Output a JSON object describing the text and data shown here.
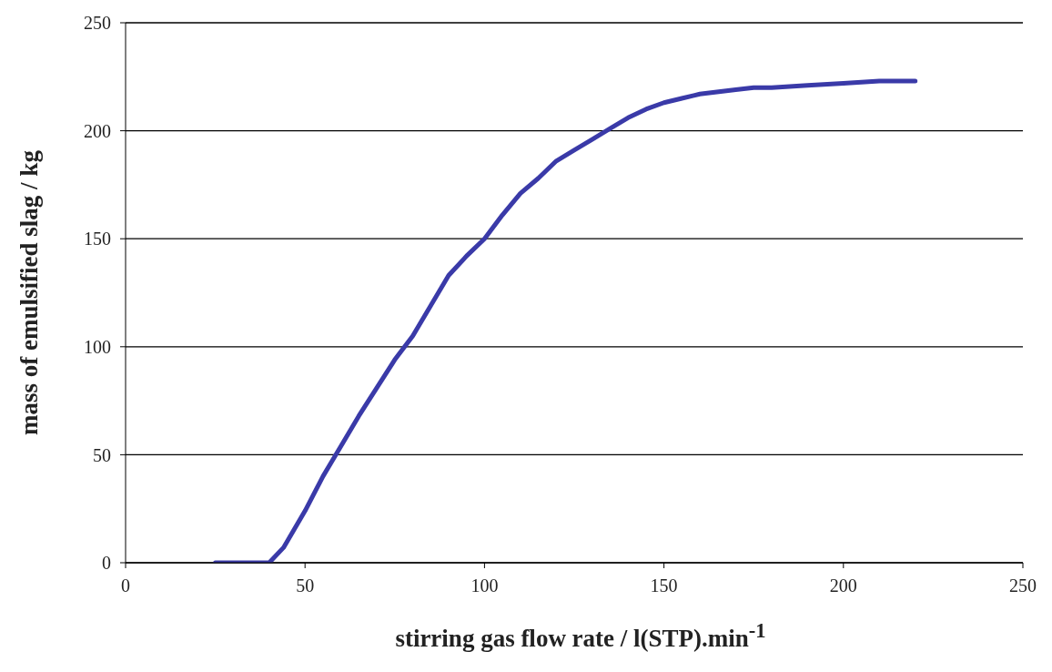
{
  "chart_data": {
    "type": "line",
    "xlabel": "stirring gas flow rate / l(STP).min$^{-1}$",
    "ylabel": "mass of emulsified slag / kg",
    "xlim": [
      0,
      250
    ],
    "xticks": [
      0,
      50,
      100,
      150,
      200,
      250
    ],
    "ylim": [
      0,
      250
    ],
    "yticks": [
      0,
      50,
      100,
      150,
      200,
      250
    ],
    "grid": "y",
    "marker": "none",
    "line_style": "solid",
    "series": [
      {
        "color": "#3a3aa8",
        "x": [
          25,
          30,
          36,
          40,
          44,
          50,
          55,
          60,
          65,
          70,
          75,
          80,
          85,
          90,
          95,
          100,
          105,
          110,
          115,
          120,
          125,
          130,
          135,
          140,
          145,
          150,
          155,
          160,
          170,
          175,
          180,
          190,
          200,
          210,
          220
        ],
        "values": [
          0,
          0,
          0,
          0,
          7,
          24,
          40,
          54,
          68,
          81,
          94,
          105,
          119,
          133,
          142,
          150,
          161,
          171,
          178,
          186,
          191,
          196,
          201,
          206,
          210,
          213,
          215,
          217,
          219,
          220,
          220,
          221,
          222,
          223,
          223
        ]
      }
    ]
  }
}
